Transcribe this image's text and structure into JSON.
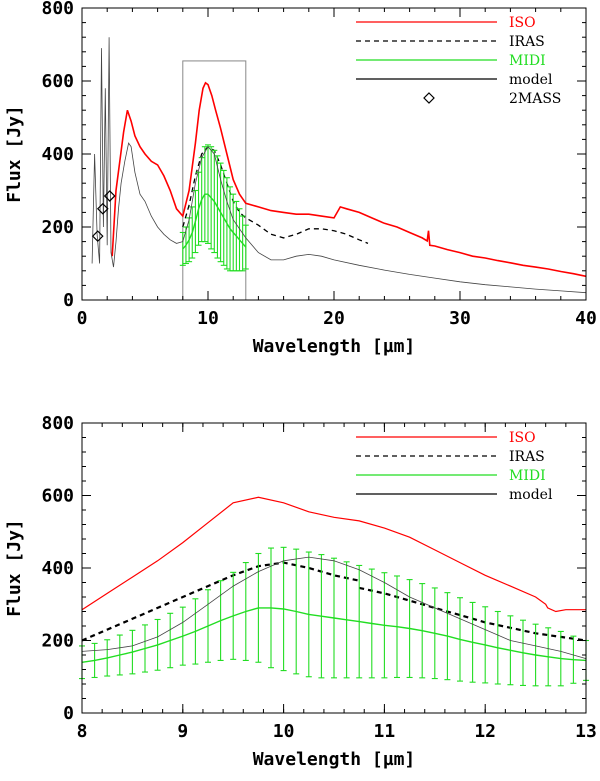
{
  "colors": {
    "iso": "#ff0000",
    "iras": "#000000",
    "midi": "#22dd22",
    "model": "#000000",
    "twomass": "#000000",
    "axes": "#000000"
  },
  "chart_data": [
    {
      "type": "line",
      "title": "",
      "xlabel": "Wavelength [µm]",
      "ylabel": "Flux [Jy]",
      "xlim": [
        0,
        40
      ],
      "ylim": [
        0,
        800
      ],
      "xticks": [
        0,
        10,
        20,
        30,
        40
      ],
      "xtick_labels": [
        "0",
        "10",
        "20",
        "30",
        "40"
      ],
      "yticks": [
        0,
        200,
        400,
        600,
        800
      ],
      "ytick_labels": [
        "0",
        "200",
        "400",
        "600",
        "800"
      ],
      "grid": false,
      "legend_position": "top-right",
      "legend": [
        "ISO",
        "IRAS",
        "MIDI",
        "model",
        "2MASS"
      ],
      "zoom_box": {
        "x": [
          8,
          13
        ],
        "y": [
          0,
          655
        ]
      },
      "series": [
        {
          "name": "ISO",
          "x": [
            2.4,
            2.7,
            3.0,
            3.3,
            3.6,
            3.9,
            4.2,
            4.6,
            5.0,
            5.5,
            6.0,
            6.5,
            7.0,
            7.5,
            8.0,
            8.5,
            9.0,
            9.3,
            9.6,
            9.8,
            10.0,
            10.3,
            10.6,
            11.0,
            11.5,
            12.0,
            12.5,
            13.0,
            14,
            15,
            16,
            17,
            18,
            19,
            20,
            20.5,
            21,
            22,
            23,
            24,
            25,
            26,
            27,
            27.4,
            27.5,
            27.6,
            28,
            29,
            30,
            31,
            32,
            33,
            34,
            35,
            36,
            37,
            38,
            39,
            40
          ],
          "y": [
            120,
            300,
            380,
            460,
            520,
            490,
            450,
            420,
            400,
            380,
            370,
            340,
            300,
            250,
            230,
            300,
            430,
            520,
            580,
            595,
            590,
            560,
            520,
            470,
            400,
            330,
            290,
            265,
            255,
            245,
            240,
            235,
            235,
            230,
            225,
            255,
            250,
            240,
            225,
            210,
            200,
            185,
            170,
            162,
            190,
            150,
            148,
            138,
            130,
            120,
            115,
            108,
            102,
            95,
            90,
            85,
            78,
            72,
            65
          ]
        },
        {
          "name": "IRAS",
          "x": [
            8,
            8.5,
            9,
            9.5,
            10,
            10.5,
            11,
            11.5,
            12,
            12.5,
            13,
            14,
            15,
            16,
            17,
            18,
            19,
            20,
            21,
            22,
            22.7
          ],
          "y": [
            200,
            260,
            340,
            400,
            420,
            410,
            370,
            320,
            270,
            240,
            225,
            205,
            180,
            170,
            180,
            195,
            195,
            190,
            180,
            165,
            155
          ]
        },
        {
          "name": "MIDI",
          "x": [
            8,
            8.25,
            8.5,
            8.75,
            9,
            9.25,
            9.5,
            9.75,
            10,
            10.25,
            10.5,
            10.75,
            11,
            11.25,
            11.5,
            11.75,
            12,
            12.25,
            12.5,
            12.75,
            13
          ],
          "y": [
            140,
            150,
            165,
            185,
            215,
            250,
            275,
            290,
            290,
            280,
            270,
            255,
            240,
            225,
            210,
            195,
            185,
            175,
            165,
            155,
            145
          ],
          "err": [
            45,
            50,
            60,
            70,
            85,
            100,
            115,
            130,
            135,
            140,
            140,
            140,
            135,
            130,
            125,
            115,
            105,
            95,
            85,
            75,
            60
          ]
        },
        {
          "name": "model",
          "x": [
            0.8,
            1.0,
            1.2,
            1.4,
            1.55,
            1.7,
            1.85,
            2.0,
            2.15,
            2.3,
            2.5,
            2.7,
            2.9,
            3.1,
            3.4,
            3.7,
            3.9,
            4.2,
            4.6,
            5.0,
            5.5,
            6.0,
            6.5,
            7.0,
            7.5,
            8.0,
            8.5,
            9.0,
            9.5,
            10.0,
            10.5,
            11.0,
            11.5,
            12.0,
            13,
            14,
            15,
            16,
            17,
            18,
            19,
            20,
            22,
            24,
            26,
            28,
            30,
            32,
            34,
            36,
            38,
            40
          ],
          "y": [
            100,
            400,
            180,
            100,
            690,
            200,
            580,
            150,
            720,
            130,
            90,
            160,
            250,
            320,
            380,
            430,
            420,
            350,
            290,
            270,
            230,
            200,
            180,
            165,
            155,
            160,
            220,
            320,
            390,
            420,
            400,
            330,
            270,
            220,
            170,
            130,
            110,
            110,
            120,
            125,
            120,
            110,
            95,
            82,
            70,
            60,
            50,
            42,
            36,
            30,
            25,
            20
          ]
        },
        {
          "name": "2MASS",
          "type": "scatter",
          "x": [
            1.25,
            1.65,
            2.2
          ],
          "y": [
            175,
            250,
            285
          ]
        }
      ]
    },
    {
      "type": "line",
      "title": "",
      "xlabel": "Wavelength [µm]",
      "ylabel": "Flux [Jy]",
      "xlim": [
        8,
        13
      ],
      "ylim": [
        0,
        800
      ],
      "xticks": [
        8,
        9,
        10,
        11,
        12,
        13
      ],
      "xtick_labels": [
        "8",
        "9",
        "10",
        "11",
        "12",
        "13"
      ],
      "yticks": [
        0,
        200,
        400,
        600,
        800
      ],
      "ytick_labels": [
        "0",
        "200",
        "400",
        "600",
        "800"
      ],
      "grid": false,
      "legend_position": "top-right",
      "legend": [
        "ISO",
        "IRAS",
        "MIDI",
        "model"
      ],
      "series": [
        {
          "name": "ISO",
          "x": [
            8.0,
            8.25,
            8.5,
            8.75,
            9.0,
            9.25,
            9.5,
            9.75,
            10.0,
            10.25,
            10.5,
            10.75,
            11.0,
            11.25,
            11.5,
            11.75,
            12.0,
            12.25,
            12.5,
            12.6,
            12.62,
            12.7,
            12.8,
            12.9,
            13.0
          ],
          "y": [
            285,
            330,
            375,
            420,
            470,
            525,
            580,
            595,
            580,
            555,
            540,
            530,
            510,
            485,
            450,
            415,
            380,
            350,
            320,
            300,
            290,
            280,
            285,
            285,
            285
          ]
        },
        {
          "name": "IRAS",
          "x": [
            8.0,
            8.25,
            8.5,
            8.75,
            9.0,
            9.25,
            9.5,
            9.75,
            10.0,
            10.25,
            10.5,
            10.75
          ],
          "y": [
            200,
            230,
            260,
            290,
            320,
            350,
            380,
            405,
            415,
            400,
            380,
            365
          ]
        },
        {
          "name": "IRAS",
          "x": [
            10.75,
            11.0,
            11.25,
            11.5,
            11.75,
            12.0,
            12.25,
            12.5,
            12.75,
            13.0
          ],
          "y": [
            345,
            330,
            310,
            290,
            270,
            250,
            235,
            220,
            210,
            200
          ]
        },
        {
          "name": "MIDI",
          "x": [
            8.0,
            8.125,
            8.25,
            8.375,
            8.5,
            8.625,
            8.75,
            8.875,
            9.0,
            9.125,
            9.25,
            9.375,
            9.5,
            9.625,
            9.75,
            9.875,
            10.0,
            10.125,
            10.25,
            10.375,
            10.5,
            10.625,
            10.75,
            10.875,
            11.0,
            11.125,
            11.25,
            11.375,
            11.5,
            11.625,
            11.75,
            11.875,
            12.0,
            12.125,
            12.25,
            12.375,
            12.5,
            12.625,
            12.75,
            12.875,
            13.0
          ],
          "y": [
            140,
            145,
            152,
            160,
            168,
            178,
            188,
            200,
            212,
            225,
            240,
            255,
            268,
            280,
            290,
            290,
            287,
            280,
            272,
            267,
            262,
            257,
            252,
            247,
            242,
            238,
            233,
            227,
            220,
            212,
            203,
            195,
            188,
            180,
            173,
            166,
            160,
            155,
            150,
            147,
            145
          ],
          "err": [
            45,
            47,
            50,
            55,
            60,
            65,
            70,
            75,
            80,
            90,
            100,
            110,
            120,
            135,
            150,
            165,
            170,
            172,
            172,
            170,
            165,
            160,
            155,
            150,
            145,
            140,
            135,
            130,
            125,
            120,
            115,
            110,
            105,
            100,
            95,
            90,
            85,
            80,
            75,
            65,
            55
          ]
        },
        {
          "name": "model",
          "x": [
            8.0,
            8.25,
            8.5,
            8.75,
            9.0,
            9.25,
            9.5,
            9.75,
            10.0,
            10.25,
            10.5,
            10.75,
            11.0,
            11.25,
            11.5,
            11.75,
            12.0,
            12.25,
            12.5,
            12.75,
            13.0
          ],
          "y": [
            170,
            175,
            185,
            210,
            250,
            300,
            350,
            390,
            420,
            430,
            420,
            395,
            360,
            320,
            290,
            260,
            230,
            200,
            185,
            170,
            150
          ]
        }
      ]
    }
  ]
}
